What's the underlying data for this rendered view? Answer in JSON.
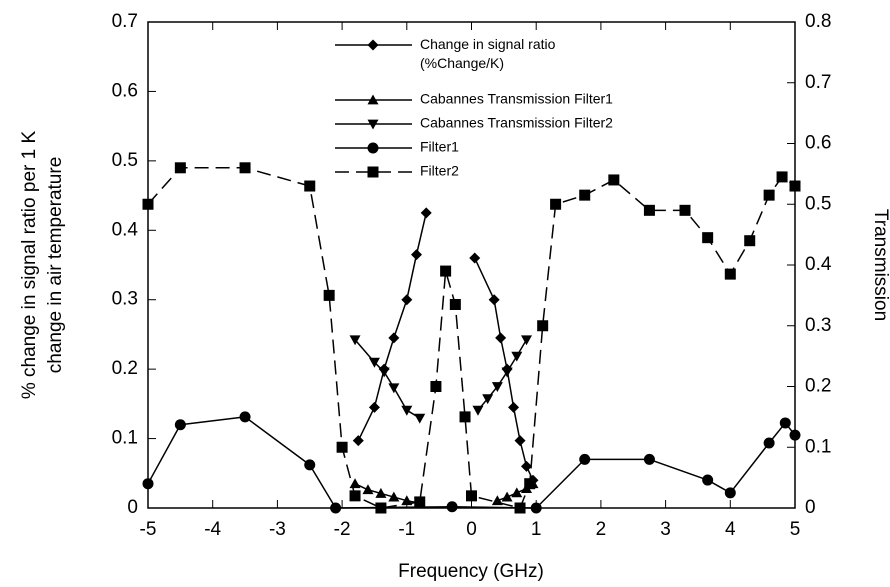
{
  "chart_data": {
    "type": "line",
    "xlabel": "Frequency (GHz)",
    "ylabel": [
      "% change in signal ratio per 1 K",
      "change in air temperature"
    ],
    "y2label": "Transmission",
    "xlim": [
      -5,
      5
    ],
    "xticks": [
      -5,
      -4,
      -3,
      -2,
      -1,
      0,
      1,
      2,
      3,
      4,
      5
    ],
    "ylim": [
      0,
      0.7
    ],
    "yticks": [
      0,
      0.1,
      0.2,
      0.3,
      0.4,
      0.5,
      0.6,
      0.7
    ],
    "y2lim": [
      0,
      0.8
    ],
    "y2ticks": [
      0,
      0.1,
      0.2,
      0.3,
      0.4,
      0.5,
      0.6,
      0.7,
      0.8
    ],
    "series": [
      {
        "name": "Change in signal ratio\n(%Change/K)",
        "color": "#000000",
        "marker": "diamond",
        "dash": false,
        "x": [
          -1.75,
          -1.5,
          -1.35,
          -1.2,
          -1.0,
          -0.85,
          -0.7,
          null,
          0.05,
          0.35,
          0.45,
          0.55,
          0.65,
          0.75,
          0.85,
          0.95
        ],
        "values": [
          0.097,
          0.145,
          0.2,
          0.245,
          0.3,
          0.365,
          0.425,
          null,
          0.36,
          0.3,
          0.245,
          0.2,
          0.145,
          0.097,
          0.06,
          0.04
        ]
      },
      {
        "name": "Cabannes Transmission Filter1",
        "color": "#000000",
        "marker": "triangle-up",
        "dash": false,
        "axis": "y2",
        "x": [
          -1.8,
          -1.6,
          -1.4,
          -1.2,
          -1.0,
          -0.8,
          null,
          0.4,
          0.55,
          0.7,
          0.85,
          0.95
        ],
        "values": [
          0.04,
          0.03,
          0.024,
          0.018,
          0.012,
          0.008,
          null,
          0.012,
          0.018,
          0.025,
          0.032,
          0.04
        ]
      },
      {
        "name": "Cabannes Transmission Filter2",
        "color": "#000000",
        "marker": "triangle-down",
        "dash": false,
        "axis": "y2",
        "x": [
          -1.8,
          -1.5,
          -1.35,
          -1.2,
          -1.0,
          -0.8,
          null,
          0.1,
          0.25,
          0.4,
          0.55,
          0.7,
          0.85
        ],
        "values": [
          0.277,
          0.24,
          0.224,
          0.198,
          0.161,
          0.148,
          null,
          0.161,
          0.18,
          0.2,
          0.224,
          0.25,
          0.277
        ]
      },
      {
        "name": "Filter1",
        "color": "#000000",
        "marker": "circle",
        "dash": false,
        "axis": "y2",
        "x": [
          -5,
          -4.5,
          -3.5,
          -2.5,
          -2.1,
          -0.3,
          1.0,
          1.75,
          2.75,
          3.65,
          4.0,
          4.6,
          4.85,
          5
        ],
        "values": [
          0.04,
          0.137,
          0.15,
          0.071,
          0.0,
          0.002,
          0.0,
          0.08,
          0.08,
          0.046,
          0.025,
          0.107,
          0.14,
          0.12
        ]
      },
      {
        "name": "Filter2",
        "color": "#000000",
        "marker": "square",
        "dash": true,
        "axis": "y2",
        "x": [
          -5,
          -4.5,
          -3.5,
          -2.5,
          -2.2,
          -2.0,
          -1.8,
          -1.4,
          -0.8,
          -0.55,
          -0.4,
          -0.25,
          -0.1,
          0.0,
          0.75,
          0.9,
          1.1,
          1.3,
          1.75,
          2.2,
          2.75,
          3.3,
          3.65,
          4.0,
          4.3,
          4.6,
          4.8,
          5
        ],
        "values": [
          0.5,
          0.56,
          0.56,
          0.53,
          0.35,
          0.1,
          0.02,
          0.0,
          0.01,
          0.2,
          0.39,
          0.335,
          0.15,
          0.02,
          0.0,
          0.04,
          0.3,
          0.5,
          0.515,
          0.54,
          0.49,
          0.49,
          0.445,
          0.385,
          0.44,
          0.515,
          0.545,
          0.53
        ]
      }
    ]
  }
}
